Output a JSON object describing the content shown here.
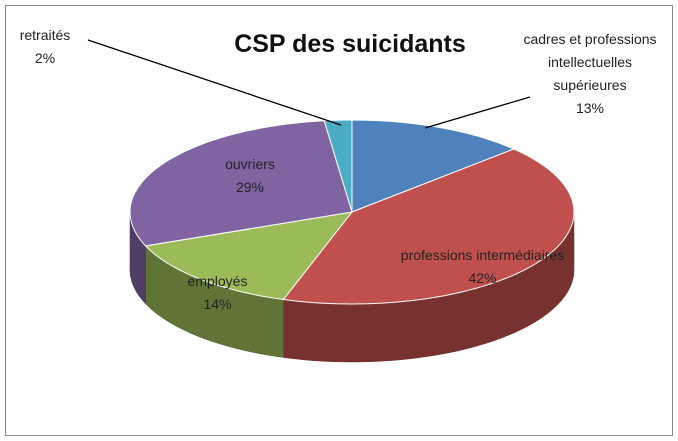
{
  "chart_data": {
    "type": "pie",
    "title": "CSP des suicidants",
    "categories": [
      "cadres et professions intellectuelles supérieures",
      "professions intermédiaires",
      "employés",
      "ouvriers",
      "retraités"
    ],
    "values": [
      13,
      42,
      14,
      29,
      2
    ],
    "value_labels": [
      "13%",
      "42%",
      "14%",
      "29%",
      "2%"
    ],
    "colors": [
      "#4f81bd",
      "#c0504d",
      "#9bbb59",
      "#8064a2",
      "#4bacc6"
    ],
    "three_d": true
  }
}
